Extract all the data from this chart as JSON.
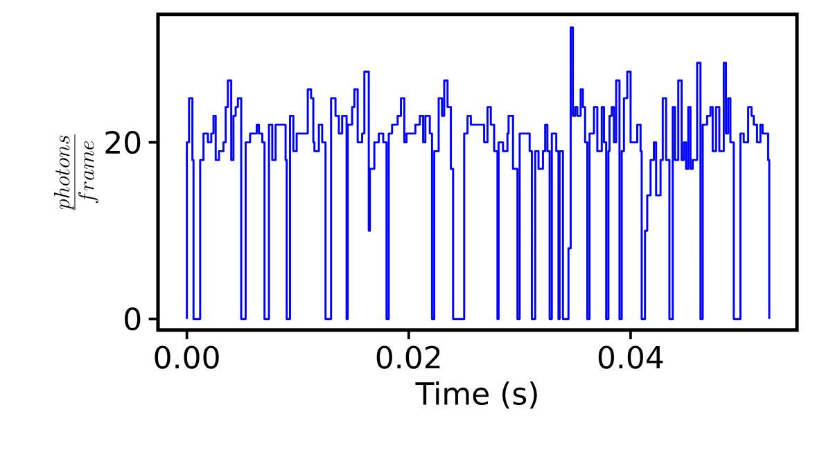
{
  "chart_data": {
    "type": "step",
    "xlabel": "Time (s)",
    "ylabel": "\\frac{photons}{frame}",
    "xlim": [
      -0.0026,
      0.055
    ],
    "ylim": [
      -1.25,
      34.5
    ],
    "xticks": [
      {
        "value": 0,
        "label": "0.00"
      },
      {
        "value": 0.02,
        "label": "0.02"
      },
      {
        "value": 0.04,
        "label": "0.04"
      }
    ],
    "yticks": [
      0,
      20
    ],
    "series": [
      {
        "color": "#0000ff",
        "x": [
          0,
          0.0,
          0.0002,
          0.0005,
          0.0006,
          0.0012,
          0.0015,
          0.0019,
          0.0022,
          0.0024,
          0.0026,
          0.0029,
          0.0033,
          0.0035,
          0.0037,
          0.004,
          0.0042,
          0.0044,
          0.0046,
          0.0049,
          0.0053,
          0.0057,
          0.0063,
          0.0065,
          0.0068,
          0.007,
          0.0074,
          0.0077,
          0.008,
          0.0089,
          0.009,
          0.0093,
          0.0096,
          0.0099,
          0.0109,
          0.0112,
          0.0114,
          0.0115,
          0.0119,
          0.0122,
          0.0125,
          0.013,
          0.0134,
          0.0137,
          0.014,
          0.0144,
          0.0145,
          0.0149,
          0.0151,
          0.0154,
          0.0158,
          0.016,
          0.0164,
          0.0165,
          0.0169,
          0.0173,
          0.0177,
          0.018,
          0.0182,
          0.0185,
          0.019,
          0.0193,
          0.0196,
          0.0198,
          0.0206,
          0.021,
          0.0213,
          0.0215,
          0.0219,
          0.0221,
          0.0223,
          0.0227,
          0.023,
          0.0232,
          0.0235,
          0.0238,
          0.024,
          0.025,
          0.0253,
          0.0256,
          0.0265,
          0.0268,
          0.0271,
          0.0274,
          0.0277,
          0.028,
          0.0281,
          0.0285,
          0.0289,
          0.029,
          0.0294,
          0.0298,
          0.03,
          0.0309,
          0.0311,
          0.0314,
          0.0317,
          0.0321,
          0.0323,
          0.0325,
          0.0327,
          0.0329,
          0.0333,
          0.0335,
          0.0336,
          0.0339,
          0.0344,
          0.0346,
          0.0348,
          0.035,
          0.0352,
          0.0355,
          0.0357,
          0.0359,
          0.0361,
          0.0363,
          0.0367,
          0.037,
          0.0374,
          0.0376,
          0.0378,
          0.038,
          0.0381,
          0.0383,
          0.0385,
          0.0387,
          0.039,
          0.0392,
          0.0394,
          0.0397,
          0.04,
          0.0406,
          0.0409,
          0.041,
          0.0413,
          0.0415,
          0.0418,
          0.0421,
          0.0423,
          0.0427,
          0.0429,
          0.0432,
          0.0435,
          0.0438,
          0.044,
          0.0443,
          0.0446,
          0.0448,
          0.045,
          0.0452,
          0.0454,
          0.0456,
          0.046,
          0.0463,
          0.0465,
          0.0469,
          0.0472,
          0.0474,
          0.0477,
          0.048,
          0.0484,
          0.0486,
          0.0488,
          0.049,
          0.0493,
          0.0499,
          0.0502,
          0.0506,
          0.0509,
          0.0511,
          0.0514,
          0.0517,
          0.0519,
          0.0524,
          0.0525
        ],
        "values": [
          0,
          20,
          25,
          18,
          0,
          18,
          21,
          20,
          21,
          23,
          18,
          19,
          20,
          24,
          27,
          18,
          23,
          24,
          25,
          0,
          20,
          21,
          22,
          21,
          20,
          0,
          22,
          18,
          22,
          18,
          0,
          23,
          19,
          21,
          26,
          25,
          20,
          19,
          22,
          20,
          0,
          25,
          23,
          21,
          23,
          0,
          22,
          24,
          26,
          20,
          21,
          28,
          10,
          17,
          20,
          21,
          20,
          0,
          21,
          22,
          23,
          25,
          20,
          21,
          22,
          23,
          20,
          23,
          21,
          0,
          19,
          25,
          23,
          27,
          24,
          17,
          0,
          21,
          23,
          22,
          22,
          20,
          24,
          22,
          19,
          0,
          20,
          19,
          21,
          23,
          17,
          0,
          21,
          19,
          0,
          19,
          17,
          19,
          22,
          19,
          0,
          21,
          19,
          0,
          19,
          0,
          8,
          33,
          23,
          24,
          23,
          26,
          24,
          20,
          0,
          21,
          24,
          19,
          24,
          20,
          0,
          19,
          23,
          24,
          20,
          27,
          0,
          19,
          25,
          28,
          20,
          22,
          19,
          0,
          10,
          14,
          18,
          20,
          14,
          18,
          25,
          18,
          0,
          24,
          18,
          27,
          18,
          20,
          17,
          24,
          17,
          18,
          29,
          0,
          22,
          23,
          24,
          19,
          24,
          19,
          29,
          21,
          25,
          20,
          0,
          21,
          20,
          24,
          23,
          22,
          20,
          22,
          21,
          18,
          0
        ]
      }
    ]
  }
}
